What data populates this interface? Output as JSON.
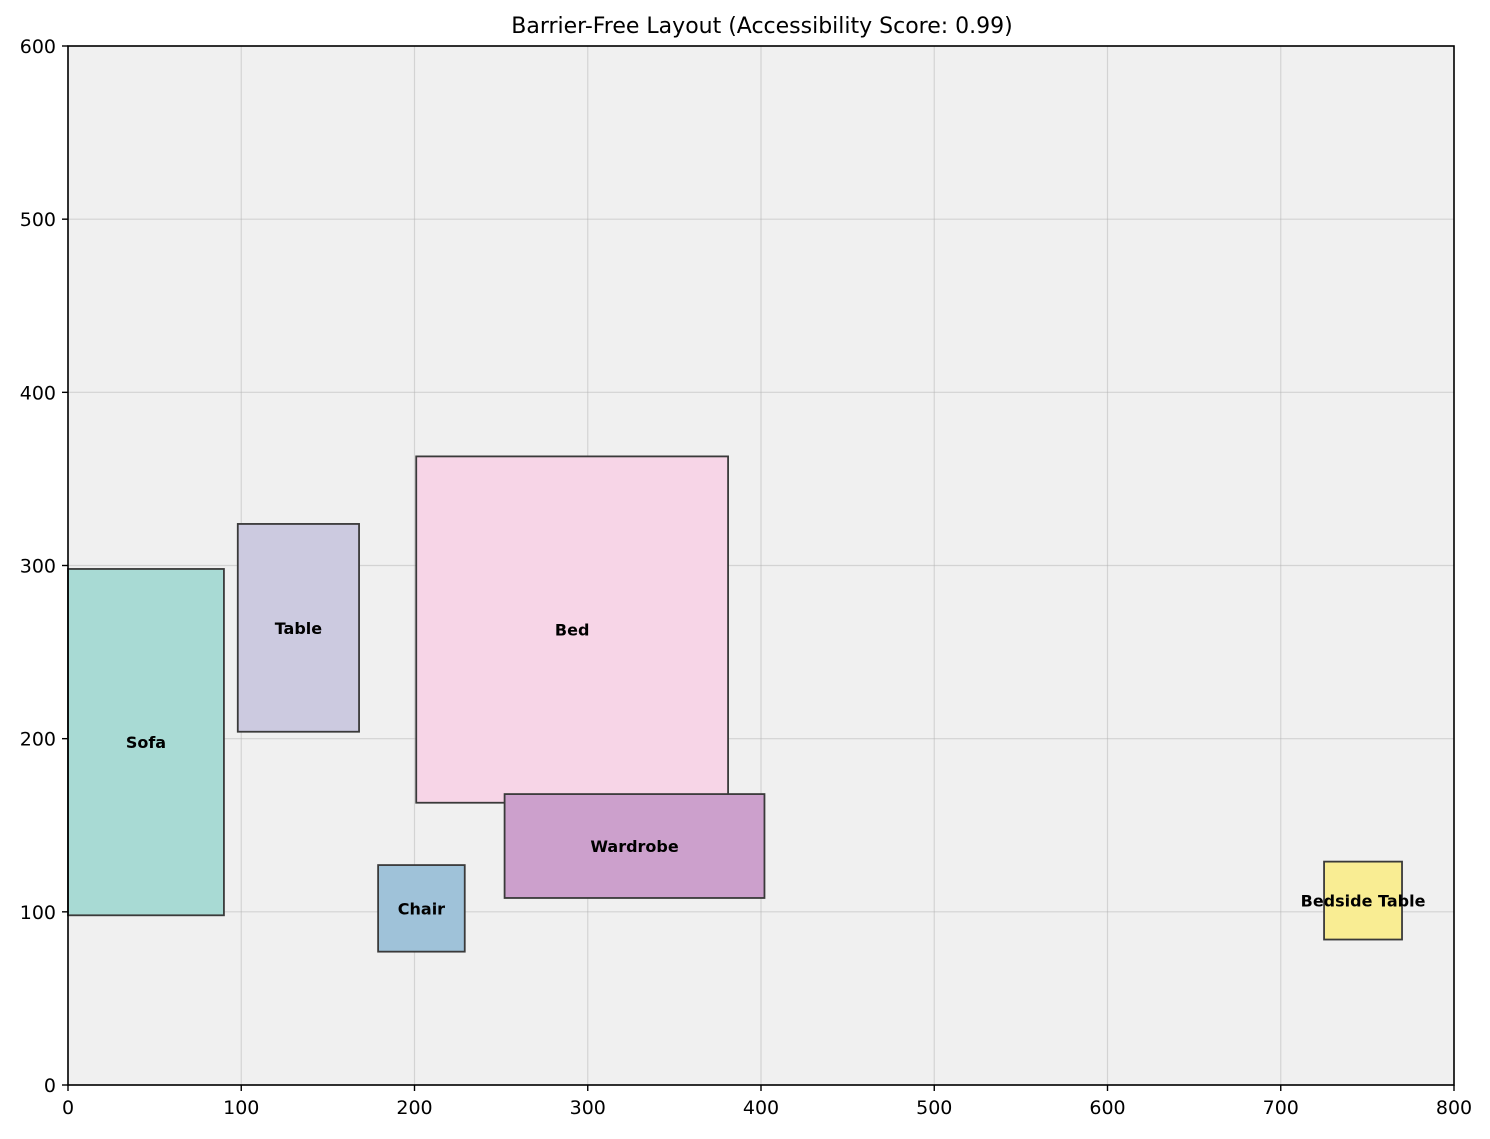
{
  "chart_data": {
    "type": "rectangles",
    "title": "Barrier-Free Layout (Accessibility Score: 0.99)",
    "xlabel": "",
    "ylabel": "",
    "xlim": [
      0,
      800
    ],
    "ylim": [
      0,
      600
    ],
    "x_ticks": [
      0,
      100,
      200,
      300,
      400,
      500,
      600,
      700,
      800
    ],
    "y_ticks": [
      0,
      100,
      200,
      300,
      400,
      500,
      600
    ],
    "grid": true,
    "background_color": "#f0f0f0",
    "items": [
      {
        "label": "Sofa",
        "x": 0,
        "y": 98,
        "width": 90,
        "height": 200,
        "color": "#a8dad4"
      },
      {
        "label": "Table",
        "x": 98,
        "y": 204,
        "width": 70,
        "height": 120,
        "color": "#cccae0"
      },
      {
        "label": "Bed",
        "x": 201,
        "y": 163,
        "width": 180,
        "height": 200,
        "color": "#f7d5e7"
      },
      {
        "label": "Wardrobe",
        "x": 252,
        "y": 108,
        "width": 150,
        "height": 60,
        "color": "#cca0cc"
      },
      {
        "label": "Chair",
        "x": 179,
        "y": 77,
        "width": 50,
        "height": 50,
        "color": "#9fc2d9"
      },
      {
        "label": "Bedside Table",
        "x": 725,
        "y": 84,
        "width": 45,
        "height": 45,
        "color": "#f9ed93"
      }
    ]
  }
}
